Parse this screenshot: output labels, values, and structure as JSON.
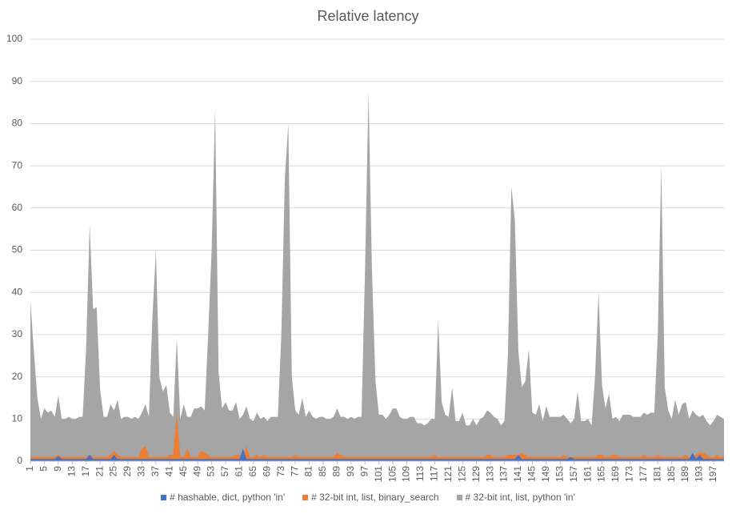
{
  "chart_data": {
    "type": "area",
    "title": "Relative latency",
    "x": [
      1,
      2,
      3,
      4,
      5,
      6,
      7,
      8,
      9,
      10,
      11,
      12,
      13,
      14,
      15,
      16,
      17,
      18,
      19,
      20,
      21,
      22,
      23,
      24,
      25,
      26,
      27,
      28,
      29,
      30,
      31,
      32,
      33,
      34,
      35,
      36,
      37,
      38,
      39,
      40,
      41,
      42,
      43,
      44,
      45,
      46,
      47,
      48,
      49,
      50,
      51,
      52,
      53,
      54,
      55,
      56,
      57,
      58,
      59,
      60,
      61,
      62,
      63,
      64,
      65,
      66,
      67,
      68,
      69,
      70,
      71,
      72,
      73,
      74,
      75,
      76,
      77,
      78,
      79,
      80,
      81,
      82,
      83,
      84,
      85,
      86,
      87,
      88,
      89,
      90,
      91,
      92,
      93,
      94,
      95,
      96,
      97,
      98,
      99,
      100,
      101,
      102,
      103,
      104,
      105,
      106,
      107,
      108,
      109,
      110,
      111,
      112,
      113,
      114,
      115,
      116,
      117,
      118,
      119,
      120,
      121,
      122,
      123,
      124,
      125,
      126,
      127,
      128,
      129,
      130,
      131,
      132,
      133,
      134,
      135,
      136,
      137,
      138,
      139,
      140,
      141,
      142,
      143,
      144,
      145,
      146,
      147,
      148,
      149,
      150,
      151,
      152,
      153,
      154,
      155,
      156,
      157,
      158,
      159,
      160,
      161,
      162,
      163,
      164,
      165,
      166,
      167,
      168,
      169,
      170,
      171,
      172,
      173,
      174,
      175,
      176,
      177,
      178,
      179,
      180,
      181,
      182,
      183,
      184,
      185,
      186,
      187,
      188,
      189,
      190,
      191,
      192,
      193,
      194,
      195,
      196,
      197,
      198,
      199,
      200
    ],
    "xlim": [
      1,
      200
    ],
    "xticks": [
      1,
      5,
      9,
      13,
      17,
      21,
      25,
      29,
      33,
      37,
      41,
      45,
      49,
      53,
      57,
      61,
      65,
      69,
      73,
      77,
      81,
      85,
      89,
      93,
      97,
      101,
      105,
      109,
      113,
      117,
      121,
      125,
      129,
      133,
      137,
      141,
      145,
      149,
      153,
      157,
      161,
      165,
      169,
      173,
      177,
      181,
      185,
      189,
      193,
      197
    ],
    "ylim": [
      0,
      100
    ],
    "yticks": [
      0,
      10,
      20,
      30,
      40,
      50,
      60,
      70,
      80,
      90,
      100
    ],
    "grid": true,
    "legend": "bottom",
    "series": [
      {
        "name": "# hashable, dict, python 'in'",
        "color": "#4472c4",
        "values": [
          0.5,
          0.5,
          0.5,
          0.5,
          0.5,
          0.5,
          0.5,
          0.5,
          1.2,
          0.5,
          0.5,
          0.5,
          0.5,
          0.5,
          0.5,
          0.5,
          0.5,
          1.5,
          0.5,
          0.5,
          0.5,
          0.5,
          0.5,
          0.5,
          1.5,
          0.5,
          0.5,
          0.5,
          0.5,
          0.5,
          0.5,
          0.5,
          0.5,
          0.5,
          0.5,
          0.5,
          0.5,
          0.5,
          0.5,
          0.5,
          0.5,
          0.5,
          0.5,
          0.5,
          0.5,
          0.5,
          0.5,
          0.5,
          0.5,
          0.5,
          0.5,
          0.5,
          0.5,
          0.5,
          0.5,
          0.5,
          0.5,
          0.5,
          0.5,
          0.5,
          0.5,
          3,
          0.5,
          0.5,
          0.5,
          0.5,
          0.5,
          0.5,
          0.5,
          0.5,
          0.5,
          0.5,
          0.5,
          0.5,
          0.5,
          0.5,
          0.5,
          0.5,
          0.5,
          0.5,
          0.5,
          0.5,
          0.5,
          0.5,
          0.5,
          0.5,
          0.5,
          0.5,
          0.5,
          0.5,
          0.5,
          0.5,
          0.5,
          0.5,
          0.5,
          0.5,
          0.5,
          0.5,
          0.5,
          0.5,
          0.5,
          0.5,
          0.5,
          0.5,
          0.5,
          0.5,
          0.5,
          0.5,
          0.5,
          0.5,
          0.5,
          0.5,
          0.5,
          0.5,
          0.5,
          0.5,
          0.5,
          0.5,
          0.5,
          0.5,
          0.5,
          0.5,
          0.5,
          0.5,
          0.5,
          0.5,
          0.5,
          0.5,
          0.5,
          0.5,
          0.5,
          0.5,
          0.5,
          0.5,
          0.5,
          0.5,
          0.5,
          0.5,
          0.5,
          0.5,
          1.5,
          0.5,
          0.5,
          0.5,
          0.5,
          0.5,
          0.5,
          0.5,
          0.5,
          0.5,
          0.5,
          0.5,
          0.5,
          0.5,
          0.5,
          1,
          0.5,
          0.5,
          0.5,
          0.5,
          0.5,
          0.5,
          0.5,
          0.5,
          0.5,
          0.5,
          0.5,
          0.5,
          0.5,
          0.5,
          0.5,
          0.5,
          0.5,
          0.5,
          0.5,
          0.5,
          0.5,
          0.5,
          0.5,
          0.5,
          0.5,
          0.5,
          0.5,
          0.5,
          0.5,
          0.5,
          0.5,
          0.5,
          0.5,
          0.5,
          2,
          0.5,
          1.5,
          0.5,
          0.5,
          0.5,
          0.5,
          0.5,
          0.5,
          0.5
        ]
      },
      {
        "name": "# 32-bit int, list, binary_search",
        "color": "#ed7d31",
        "values": [
          1,
          1,
          1,
          1,
          1,
          1,
          1,
          1,
          1.5,
          1,
          1,
          1,
          1,
          1,
          1,
          1,
          1,
          1.5,
          1,
          1,
          1,
          1,
          1,
          1.5,
          2.5,
          1.5,
          1,
          1,
          1,
          1,
          1,
          1,
          3,
          3.5,
          1,
          1,
          1,
          1,
          1,
          1,
          1.5,
          1.5,
          11.5,
          1,
          1,
          3,
          1,
          1,
          1,
          2.5,
          2,
          1.5,
          1,
          1,
          1,
          1,
          1,
          1,
          1,
          1.5,
          1.5,
          1,
          3.5,
          1,
          1,
          1.5,
          1,
          1.5,
          1,
          1,
          1,
          1,
          1,
          1,
          1,
          1,
          1.5,
          1,
          1,
          1,
          1,
          1,
          1,
          1,
          1,
          1,
          1,
          1,
          2,
          1.5,
          1,
          1,
          1,
          1,
          1,
          1,
          1,
          1,
          1,
          1,
          1,
          1,
          1,
          1,
          1,
          1,
          1,
          1,
          1,
          1,
          1,
          1,
          1,
          1,
          1,
          1,
          1.5,
          1,
          1,
          1,
          1,
          1,
          1,
          1,
          1,
          1,
          1,
          1,
          1,
          1,
          1,
          1.5,
          1.5,
          1,
          1,
          1,
          1,
          1.5,
          1.5,
          1.5,
          1.5,
          2,
          1.5,
          1,
          1,
          1,
          1,
          1,
          1,
          1,
          1,
          1,
          1,
          1.5,
          1,
          1,
          1,
          1,
          1,
          1,
          1,
          1,
          1,
          1.5,
          1.5,
          1,
          1,
          1.5,
          1.5,
          1,
          1,
          1,
          1,
          1,
          1,
          1,
          1.5,
          1,
          1,
          1,
          1.5,
          1,
          1,
          1,
          1,
          1,
          1,
          1,
          1.5,
          1,
          1,
          1.5,
          2,
          2,
          1.5,
          1,
          1,
          1.5,
          1,
          1
        ]
      },
      {
        "name": "# 32-bit int, list, python 'in'",
        "color": "#a5a5a5",
        "values": [
          38,
          26,
          15,
          10,
          12.5,
          11.5,
          12,
          10.5,
          15.5,
          10,
          10,
          10.5,
          10,
          10,
          10.5,
          10.5,
          27,
          56,
          36,
          36.5,
          17,
          10.5,
          10.5,
          13.5,
          12,
          14.5,
          10,
          10.5,
          10.5,
          10,
          10.5,
          10,
          11.5,
          13.5,
          10.5,
          34,
          50,
          20,
          16.5,
          18,
          11.5,
          10.5,
          29,
          10,
          13.5,
          10.5,
          10.5,
          12.5,
          12.5,
          13,
          12,
          30,
          50,
          83.5,
          21,
          12.5,
          14,
          12,
          12,
          14,
          10,
          11,
          13,
          10,
          9.5,
          11.5,
          10,
          10.5,
          9.5,
          10.5,
          10.5,
          10.5,
          30,
          67,
          80,
          20,
          12,
          11,
          15,
          10.5,
          12,
          10.5,
          10,
          10.5,
          10.5,
          10,
          10,
          10.5,
          12.5,
          10.5,
          10.5,
          10,
          10.5,
          10,
          10.5,
          10.5,
          45,
          87.5,
          45,
          19,
          11,
          11,
          10,
          11,
          12.5,
          12.5,
          10.5,
          10,
          10,
          10.5,
          10.5,
          9,
          9,
          8.5,
          9,
          10,
          10,
          33.5,
          14,
          11,
          10.5,
          17.5,
          9.5,
          9.5,
          11.5,
          8.5,
          8.5,
          10,
          8.5,
          10,
          10.5,
          12,
          11.5,
          10.5,
          10,
          8.5,
          9.5,
          25,
          65,
          57,
          26,
          17.5,
          19,
          26.5,
          11.5,
          11,
          13.5,
          9.5,
          13,
          10.5,
          10.5,
          10.5,
          10.5,
          11,
          10,
          9,
          10,
          16.5,
          9.5,
          9.5,
          10,
          8.5,
          20,
          40,
          18,
          12.5,
          16,
          10,
          10.5,
          9.5,
          11,
          11,
          11,
          10.5,
          10.5,
          10.5,
          11.5,
          11,
          11.5,
          11.5,
          30,
          70,
          17.5,
          12,
          10,
          14.5,
          11,
          13.5,
          14,
          10,
          12,
          11,
          10.5,
          11,
          9.5,
          8.5,
          9.5,
          11,
          10.5,
          10
        ]
      }
    ]
  }
}
